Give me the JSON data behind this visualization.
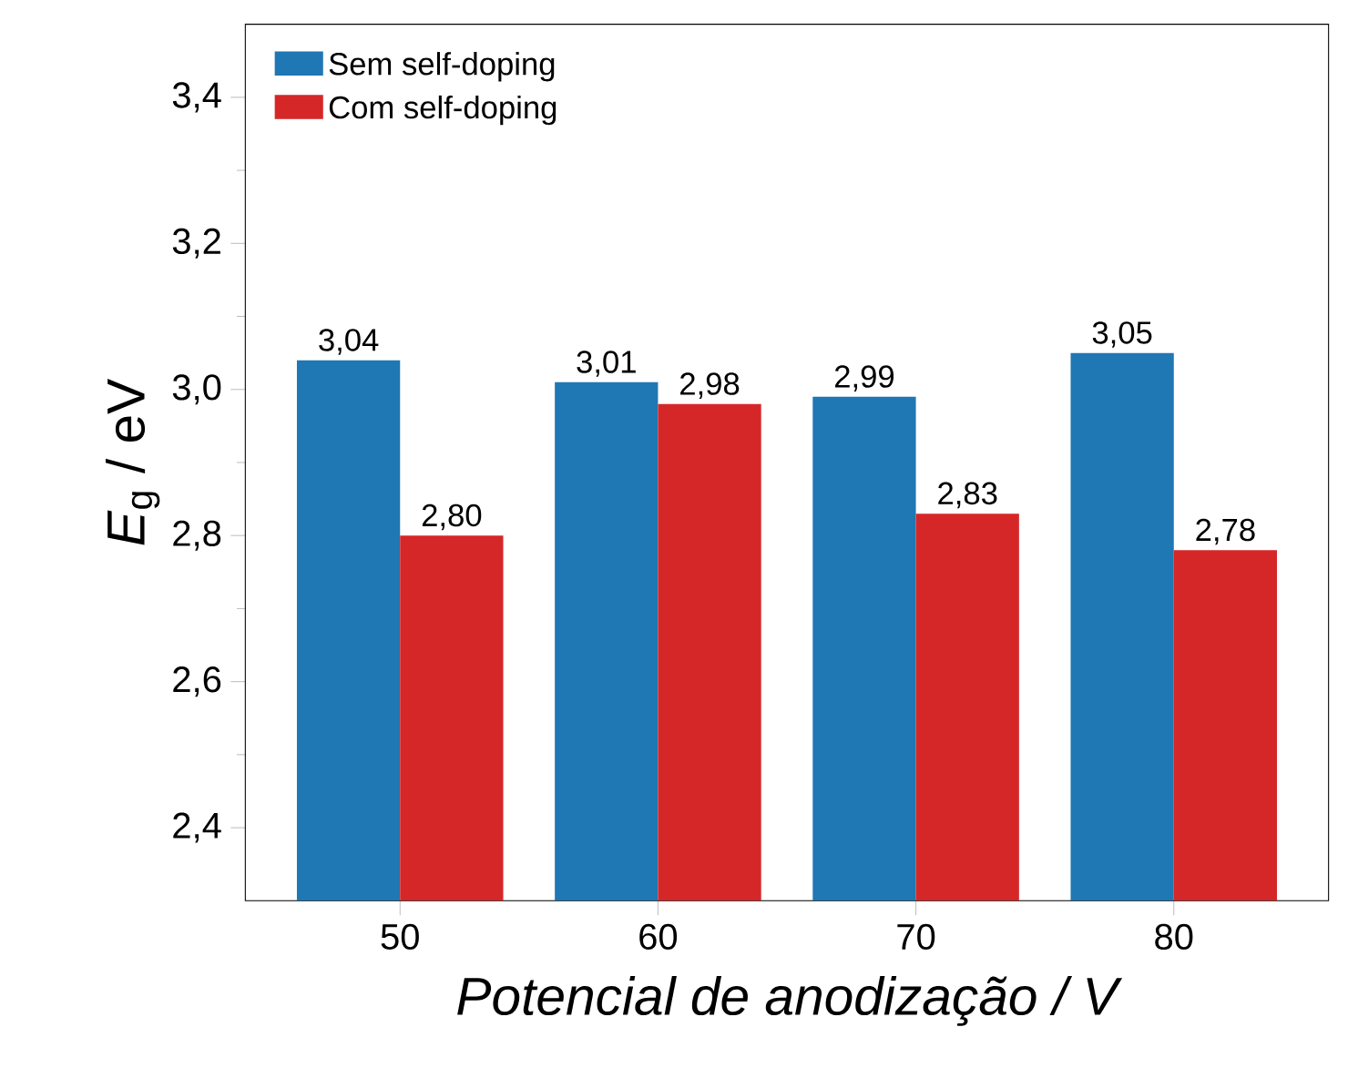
{
  "chart_data": {
    "type": "bar",
    "xlabel": "Potencial de anodização / V",
    "ylabel": "*E*$_{g}$ / eV",
    "categories": [
      "50",
      "60",
      "70",
      "80"
    ],
    "series": [
      {
        "name": "Sem self-doping",
        "color": "#1f77b4",
        "values": [
          3.04,
          3.01,
          2.99,
          3.05
        ],
        "value_labels": [
          "3,04",
          "3,01",
          "2,99",
          "3,05"
        ]
      },
      {
        "name": "Com self-doping",
        "color": "#d62728",
        "values": [
          2.8,
          2.98,
          2.83,
          2.78
        ],
        "value_labels": [
          "2,80",
          "2,98",
          "2,83",
          "2,78"
        ]
      }
    ],
    "ylim": [
      2.3,
      3.5
    ],
    "yticks": [
      {
        "value": 2.4,
        "label": "2,4"
      },
      {
        "value": 2.6,
        "label": "2,6"
      },
      {
        "value": 2.8,
        "label": "2,8"
      },
      {
        "value": 3.0,
        "label": "3,0"
      },
      {
        "value": 3.2,
        "label": "3,2"
      },
      {
        "value": 3.4,
        "label": "3,4"
      }
    ],
    "legend": "top left",
    "grid": false
  }
}
